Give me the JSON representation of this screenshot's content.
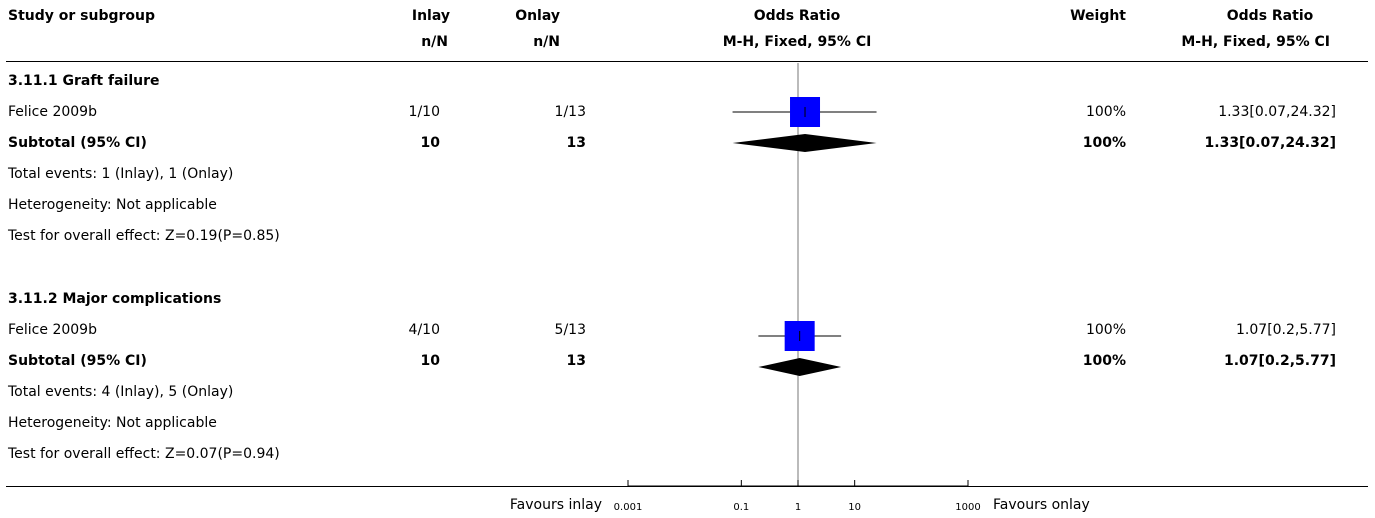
{
  "header": {
    "study_col": "Study or subgroup",
    "inlay_col": "Inlay",
    "inlay_sub": "n/N",
    "onlay_col": "Onlay",
    "onlay_sub": "n/N",
    "or_col": "Odds Ratio",
    "or_sub": "M-H, Fixed, 95% CI",
    "weight_col": "Weight",
    "or2_col": "Odds Ratio",
    "or2_sub": "M-H, Fixed, 95% CI"
  },
  "groups": [
    {
      "title": "3.11.1 Graft failure",
      "study": {
        "name": "Felice 2009b",
        "inlay": "1/10",
        "onlay": "1/13",
        "weight": "100%",
        "ci_text": "1.33[0.07,24.32]"
      },
      "subtotal": {
        "label": "Subtotal (95% CI)",
        "inlay": "10",
        "onlay": "13",
        "weight": "100%",
        "ci_text": "1.33[0.07,24.32]"
      },
      "total_events": "Total events: 1 (Inlay), 1 (Onlay)",
      "heterogeneity": "Heterogeneity: Not applicable",
      "overall_effect": "Test for overall effect: Z=0.19(P=0.85)"
    },
    {
      "title": "3.11.2 Major complications",
      "study": {
        "name": "Felice 2009b",
        "inlay": "4/10",
        "onlay": "5/13",
        "weight": "100%",
        "ci_text": "1.07[0.2,5.77]"
      },
      "subtotal": {
        "label": "Subtotal (95% CI)",
        "inlay": "10",
        "onlay": "13",
        "weight": "100%",
        "ci_text": "1.07[0.2,5.77]"
      },
      "total_events": "Total events: 4 (Inlay), 5 (Onlay)",
      "heterogeneity": "Heterogeneity: Not applicable",
      "overall_effect": "Test for overall effect: Z=0.07(P=0.94)"
    }
  ],
  "footer": {
    "favours_left": "Favours inlay",
    "favours_right": "Favours onlay"
  },
  "chart_data": {
    "type": "forest",
    "scale": "log",
    "xlim": [
      0.001,
      1000
    ],
    "null_line": 1,
    "ticks": [
      {
        "value": 0.001,
        "label": "0.001"
      },
      {
        "value": 0.1,
        "label": "0.1"
      },
      {
        "value": 1,
        "label": "1"
      },
      {
        "value": 10,
        "label": "10"
      },
      {
        "value": 1000,
        "label": "1000"
      }
    ],
    "colors": {
      "study_box": "#0000ff",
      "summary_diamond": "#000000",
      "line": "#000000"
    },
    "rows": [
      {
        "group": "3.11.1 Graft failure",
        "kind": "study",
        "estimate": 1.33,
        "lower": 0.07,
        "upper": 24.32,
        "weight": 100
      },
      {
        "group": "3.11.1 Graft failure",
        "kind": "subtotal",
        "estimate": 1.33,
        "lower": 0.07,
        "upper": 24.32
      },
      {
        "group": "3.11.2 Major complications",
        "kind": "study",
        "estimate": 1.07,
        "lower": 0.2,
        "upper": 5.77,
        "weight": 100
      },
      {
        "group": "3.11.2 Major complications",
        "kind": "subtotal",
        "estimate": 1.07,
        "lower": 0.2,
        "upper": 5.77
      }
    ]
  }
}
